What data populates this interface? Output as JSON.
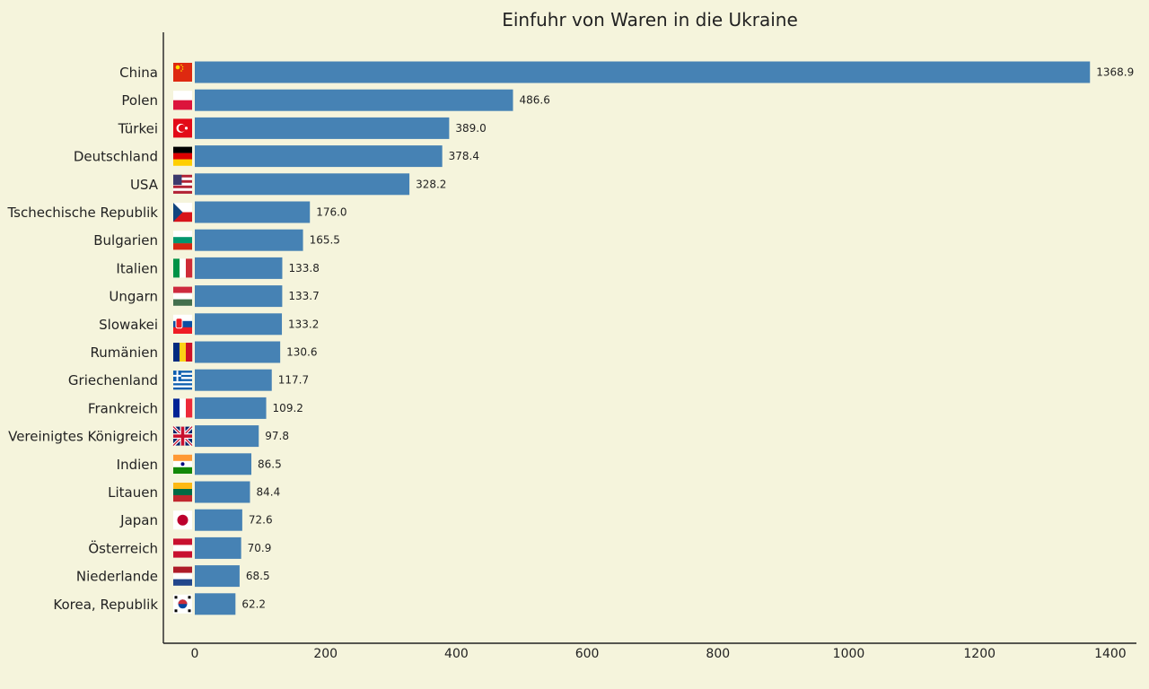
{
  "chart_data": {
    "type": "bar",
    "orientation": "horizontal",
    "title": "Einfuhr von Waren in die Ukraine",
    "xlabel": "",
    "ylabel": "",
    "xlim": [
      -48,
      1440
    ],
    "xticks": [
      0,
      200,
      400,
      600,
      800,
      1000,
      1200,
      1400
    ],
    "grid": false,
    "bar_color": "#4682b4",
    "background": "#f5f4dc",
    "categories": [
      "China",
      "Polen",
      "Türkei",
      "Deutschland",
      "USA",
      "Tschechische Republik",
      "Bulgarien",
      "Italien",
      "Ungarn",
      "Slowakei",
      "Rumänien",
      "Griechenland",
      "Frankreich",
      "Vereinigtes Königreich",
      "Indien",
      "Litauen",
      "Japan",
      "Österreich",
      "Niederlande",
      "Korea, Republik"
    ],
    "values": [
      1368.9,
      486.6,
      389.0,
      378.4,
      328.2,
      176.0,
      165.5,
      133.8,
      133.7,
      133.2,
      130.6,
      117.7,
      109.2,
      97.8,
      86.5,
      84.4,
      72.6,
      70.9,
      68.5,
      62.2
    ],
    "value_labels": [
      "1368.9",
      "486.6",
      "389.0",
      "378.4",
      "328.2",
      "176.0",
      "165.5",
      "133.8",
      "133.7",
      "133.2",
      "130.6",
      "117.7",
      "109.2",
      "97.8",
      "86.5",
      "84.4",
      "72.6",
      "70.9",
      "68.5",
      "62.2"
    ],
    "flag_icons": [
      "china-flag-icon",
      "poland-flag-icon",
      "turkey-flag-icon",
      "germany-flag-icon",
      "usa-flag-icon",
      "czech-republic-flag-icon",
      "bulgaria-flag-icon",
      "italy-flag-icon",
      "hungary-flag-icon",
      "slovakia-flag-icon",
      "romania-flag-icon",
      "greece-flag-icon",
      "france-flag-icon",
      "united-kingdom-flag-icon",
      "india-flag-icon",
      "lithuania-flag-icon",
      "japan-flag-icon",
      "austria-flag-icon",
      "netherlands-flag-icon",
      "south-korea-flag-icon"
    ]
  }
}
